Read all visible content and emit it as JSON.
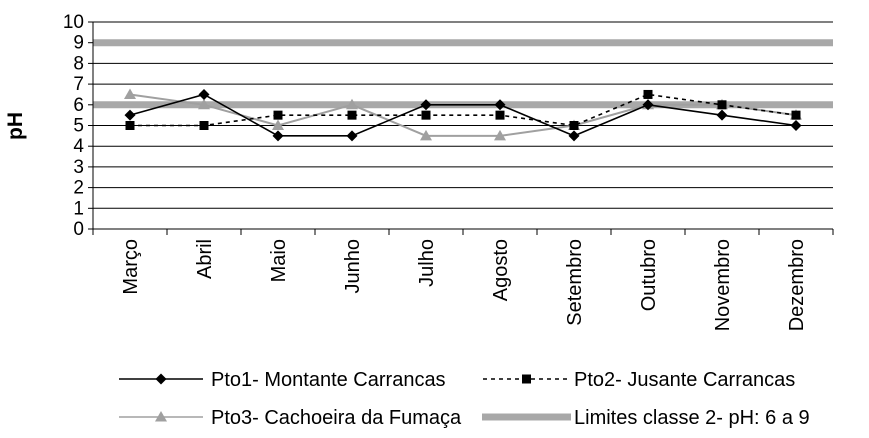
{
  "chart_data": {
    "type": "line",
    "title": "",
    "xlabel": "",
    "ylabel": "pH",
    "ylim": [
      0,
      10
    ],
    "yticks": [
      "0",
      "1",
      "2",
      "3",
      "4",
      "5",
      "6",
      "7",
      "8",
      "9",
      "10"
    ],
    "grid": true,
    "legend_position": "bottom",
    "categories": [
      "Março",
      "Abril",
      "Maio",
      "Junho",
      "Julho",
      "Agosto",
      "Setembro",
      "Outubro",
      "Novembro",
      "Dezembro"
    ],
    "series": [
      {
        "name": "Pto1- Montante Carrancas",
        "marker": "diamond",
        "line": "solid",
        "color": "#000000",
        "values": [
          5.5,
          6.5,
          4.5,
          4.5,
          6.0,
          6.0,
          4.5,
          6.0,
          5.5,
          5.0
        ]
      },
      {
        "name": "Pto2- Jusante Carrancas",
        "marker": "square",
        "line": "dotted",
        "color": "#000000",
        "values": [
          5.0,
          5.0,
          5.5,
          5.5,
          5.5,
          5.5,
          5.0,
          6.5,
          6.0,
          5.5
        ]
      },
      {
        "name": "Pto3- Cachoeira da Fumaça",
        "marker": "triangle",
        "line": "solid",
        "color": "#a0a0a0",
        "values": [
          6.5,
          6.0,
          5.0,
          6.0,
          4.5,
          4.5,
          5.0,
          6.0,
          6.0,
          5.5
        ]
      }
    ],
    "limits": {
      "name": "Limites classe 2- pH: 6 a 9",
      "lower": 6,
      "upper": 9,
      "color": "#a8a8a8"
    }
  }
}
